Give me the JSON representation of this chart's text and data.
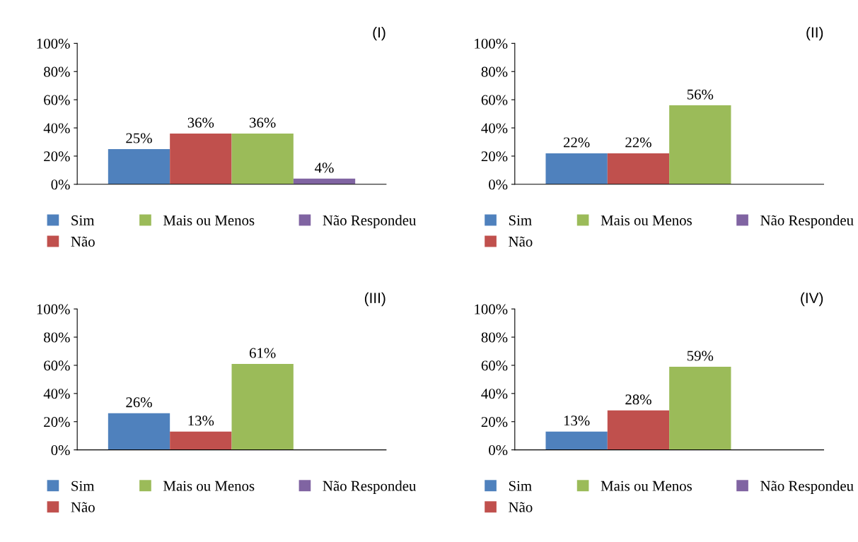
{
  "chart_data": [
    {
      "type": "bar",
      "title": "(I)",
      "categories": [
        null
      ],
      "ylim": [
        0,
        100
      ],
      "yticks": [
        {
          "value": 0,
          "label": "0%"
        },
        {
          "value": 20,
          "label": "20%"
        },
        {
          "value": 40,
          "label": "40%"
        },
        {
          "value": 60,
          "label": "60%"
        },
        {
          "value": 80,
          "label": "80%"
        },
        {
          "value": 100,
          "label": "100%"
        }
      ],
      "grid": false,
      "legend": "bottom",
      "series": [
        {
          "name": "Sim",
          "color": "#4f81bd",
          "values": [
            25
          ],
          "value_labels": [
            "25%"
          ]
        },
        {
          "name": "Não",
          "color": "#c0504d",
          "values": [
            36
          ],
          "value_labels": [
            "36%"
          ]
        },
        {
          "name": "Mais ou Menos",
          "color": "#9bbb59",
          "values": [
            36
          ],
          "value_labels": [
            "36%"
          ]
        },
        {
          "name": "Não Respondeu",
          "color": "#8064a2",
          "values": [
            4
          ],
          "value_labels": [
            "4%"
          ]
        }
      ]
    },
    {
      "type": "bar",
      "title": "(II)",
      "categories": [
        null
      ],
      "ylim": [
        0,
        100
      ],
      "yticks": [
        {
          "value": 0,
          "label": "0%"
        },
        {
          "value": 20,
          "label": "20%"
        },
        {
          "value": 40,
          "label": "40%"
        },
        {
          "value": 60,
          "label": "60%"
        },
        {
          "value": 80,
          "label": "80%"
        },
        {
          "value": 100,
          "label": "100%"
        }
      ],
      "grid": false,
      "legend": "bottom",
      "series": [
        {
          "name": "Sim",
          "color": "#4f81bd",
          "values": [
            22
          ],
          "value_labels": [
            "22%"
          ]
        },
        {
          "name": "Não",
          "color": "#c0504d",
          "values": [
            22
          ],
          "value_labels": [
            "22%"
          ]
        },
        {
          "name": "Mais ou Menos",
          "color": "#9bbb59",
          "values": [
            56
          ],
          "value_labels": [
            "56%"
          ]
        },
        {
          "name": "Não Respondeu",
          "color": "#8064a2",
          "values": [
            0
          ],
          "value_labels": [
            null
          ]
        }
      ]
    },
    {
      "type": "bar",
      "title": "(III)",
      "categories": [
        null
      ],
      "ylim": [
        0,
        100
      ],
      "yticks": [
        {
          "value": 0,
          "label": "0%"
        },
        {
          "value": 20,
          "label": "20%"
        },
        {
          "value": 40,
          "label": "40%"
        },
        {
          "value": 60,
          "label": "60%"
        },
        {
          "value": 80,
          "label": "80%"
        },
        {
          "value": 100,
          "label": "100%"
        }
      ],
      "grid": false,
      "legend": "bottom",
      "series": [
        {
          "name": "Sim",
          "color": "#4f81bd",
          "values": [
            26
          ],
          "value_labels": [
            "26%"
          ]
        },
        {
          "name": "Não",
          "color": "#c0504d",
          "values": [
            13
          ],
          "value_labels": [
            "13%"
          ]
        },
        {
          "name": "Mais ou Menos",
          "color": "#9bbb59",
          "values": [
            61
          ],
          "value_labels": [
            "61%"
          ]
        },
        {
          "name": "Não Respondeu",
          "color": "#8064a2",
          "values": [
            0
          ],
          "value_labels": [
            null
          ]
        }
      ]
    },
    {
      "type": "bar",
      "title": "(IV)",
      "categories": [
        null
      ],
      "ylim": [
        0,
        100
      ],
      "yticks": [
        {
          "value": 0,
          "label": "0%"
        },
        {
          "value": 20,
          "label": "20%"
        },
        {
          "value": 40,
          "label": "40%"
        },
        {
          "value": 60,
          "label": "60%"
        },
        {
          "value": 80,
          "label": "80%"
        },
        {
          "value": 100,
          "label": "100%"
        }
      ],
      "grid": false,
      "legend": "bottom",
      "series": [
        {
          "name": "Sim",
          "color": "#4f81bd",
          "values": [
            13
          ],
          "value_labels": [
            "13%"
          ]
        },
        {
          "name": "Não",
          "color": "#c0504d",
          "values": [
            28
          ],
          "value_labels": [
            "28%"
          ]
        },
        {
          "name": "Mais ou Menos",
          "color": "#9bbb59",
          "values": [
            59
          ],
          "value_labels": [
            "59%"
          ]
        },
        {
          "name": "Não Respondeu",
          "color": "#8064a2",
          "values": [
            0
          ],
          "value_labels": [
            null
          ]
        }
      ]
    }
  ]
}
